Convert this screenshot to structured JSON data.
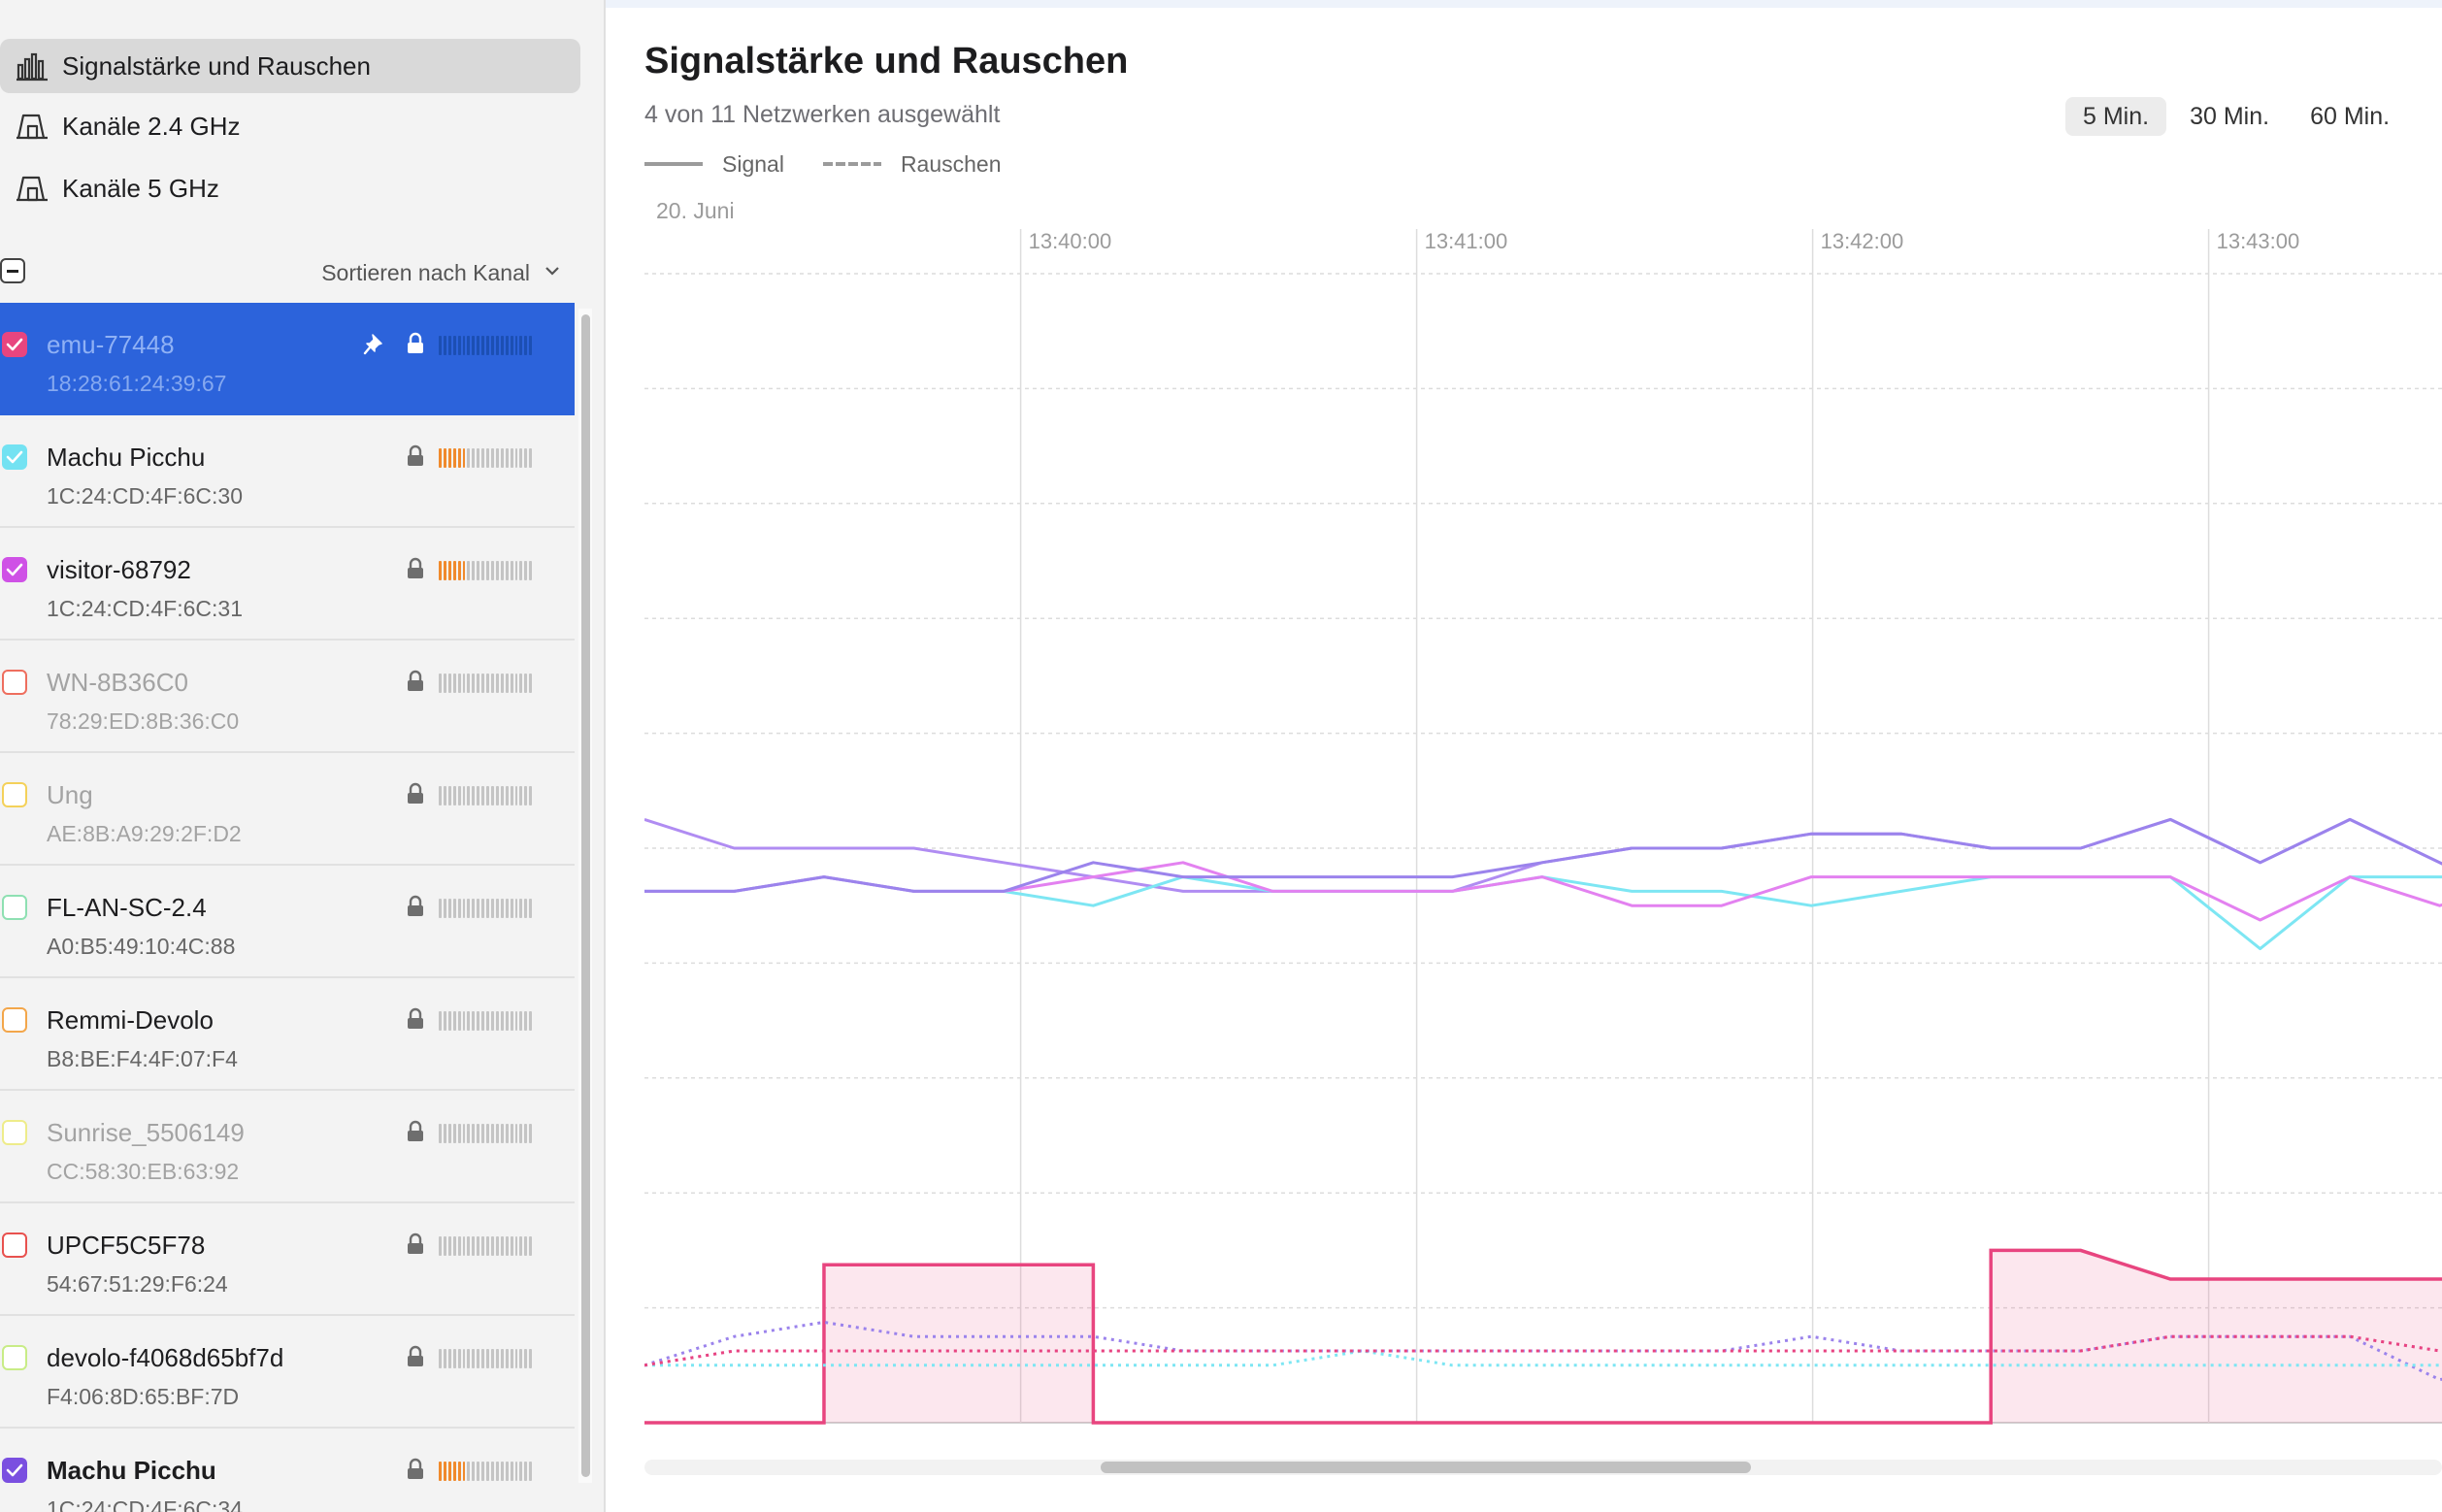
{
  "sidebar": {
    "views": [
      {
        "label": "Signalstärke und Rauschen",
        "icon": "bar-chart-icon",
        "active": true
      },
      {
        "label": "Kanäle 2.4 GHz",
        "icon": "channel-icon",
        "active": false
      },
      {
        "label": "Kanäle 5 GHz",
        "icon": "channel-icon",
        "active": false
      }
    ],
    "sort_label": "Sortieren nach Kanal",
    "networks": [
      {
        "name": "emu-77448",
        "mac": "18:28:61:24:39:67",
        "checked": true,
        "color": "#e8457f",
        "selected": true,
        "pinned": true,
        "bars_on": 0,
        "dim": false,
        "bold": false
      },
      {
        "name": "Machu Picchu",
        "mac": "1C:24:CD:4F:6C:30",
        "checked": true,
        "color": "#73e2f2",
        "selected": false,
        "pinned": false,
        "bars_on": 6,
        "dim": false,
        "bold": false
      },
      {
        "name": "visitor-68792",
        "mac": "1C:24:CD:4F:6C:31",
        "checked": true,
        "color": "#cf51e6",
        "selected": false,
        "pinned": false,
        "bars_on": 6,
        "dim": false,
        "bold": false
      },
      {
        "name": "WN-8B36C0",
        "mac": "78:29:ED:8B:36:C0",
        "checked": false,
        "color": "#ee6e5e",
        "selected": false,
        "pinned": false,
        "bars_on": 0,
        "dim": true,
        "bold": false
      },
      {
        "name": "Ung",
        "mac": "AE:8B:A9:29:2F:D2",
        "checked": false,
        "color": "#f4d15a",
        "selected": false,
        "pinned": false,
        "bars_on": 0,
        "dim": true,
        "bold": false
      },
      {
        "name": "FL-AN-SC-2.4",
        "mac": "A0:B5:49:10:4C:88",
        "checked": false,
        "color": "#8ee0b2",
        "selected": false,
        "pinned": false,
        "bars_on": 0,
        "dim": false,
        "bold": false
      },
      {
        "name": "Remmi-Devolo",
        "mac": "B8:BE:F4:4F:07:F4",
        "checked": false,
        "color": "#f3a64a",
        "selected": false,
        "pinned": false,
        "bars_on": 0,
        "dim": false,
        "bold": false
      },
      {
        "name": "Sunrise_5506149",
        "mac": "CC:58:30:EB:63:92",
        "checked": false,
        "color": "#eeec8a",
        "selected": false,
        "pinned": false,
        "bars_on": 0,
        "dim": true,
        "bold": false
      },
      {
        "name": "UPCF5C5F78",
        "mac": "54:67:51:29:F6:24",
        "checked": false,
        "color": "#e8514e",
        "selected": false,
        "pinned": false,
        "bars_on": 0,
        "dim": false,
        "bold": false
      },
      {
        "name": "devolo-f4068d65bf7d",
        "mac": "F4:06:8D:65:BF:7D",
        "checked": false,
        "color": "#c8ec86",
        "selected": false,
        "pinned": false,
        "bars_on": 0,
        "dim": false,
        "bold": false
      },
      {
        "name": "Machu Picchu",
        "mac": "1C:24:CD:4F:6C:34",
        "checked": true,
        "color": "#7a4fe0",
        "selected": false,
        "pinned": false,
        "bars_on": 6,
        "dim": false,
        "bold": true
      }
    ]
  },
  "main": {
    "title": "Signalstärke und Rauschen",
    "subtitle": "4 von 11 Netzwerken ausgewählt",
    "ranges": [
      {
        "label": "5 Min.",
        "active": true
      },
      {
        "label": "30 Min.",
        "active": false
      },
      {
        "label": "60 Min.",
        "active": false
      }
    ],
    "legend": {
      "signal": "Signal",
      "noise": "Rauschen"
    },
    "date_label": "20. Juni"
  },
  "chart_data": {
    "type": "line",
    "x_ticks": [
      "13:40:00",
      "13:41:00",
      "13:42:00",
      "13:43:00"
    ],
    "x_visible_start": "13:39:03",
    "x_step_seconds": 13.6,
    "grid": true,
    "ylim": [
      -100,
      -20
    ],
    "series": [
      {
        "kind": "signal",
        "color": "#b08cf2",
        "values": [
          -58,
          -60,
          -60,
          -60,
          -61,
          -62,
          -63,
          -63,
          -63,
          -63,
          -61,
          -60,
          -60,
          -59,
          -59,
          -60,
          -60,
          -58,
          -61,
          -58,
          -61,
          -64
        ]
      },
      {
        "kind": "signal",
        "color": "#7de6f3",
        "values": [
          -63,
          -63,
          -62,
          -63,
          -63,
          -64,
          -62,
          -63,
          -63,
          -63,
          -62,
          -63,
          -63,
          -64,
          -63,
          -62,
          -62,
          -62,
          -67,
          -62,
          -62,
          -62
        ]
      },
      {
        "kind": "signal",
        "color": "#e381f0",
        "values": [
          -63,
          -63,
          -62,
          -63,
          -63,
          -62,
          -61,
          -63,
          -63,
          -63,
          -62,
          -64,
          -64,
          -62,
          -62,
          -62,
          -62,
          -62,
          -65,
          -62,
          -64,
          -62
        ]
      },
      {
        "kind": "signal",
        "color": "#9b83ec",
        "values": [
          -63,
          -63,
          -62,
          -63,
          -63,
          -61,
          -62,
          -62,
          -62,
          -62,
          -61,
          -60,
          -60,
          -59,
          -59,
          -60,
          -60,
          -58,
          -61,
          -58,
          -61,
          -64
        ]
      },
      {
        "kind": "signal",
        "color": "#e8457f",
        "fill": true,
        "values": [
          -100,
          -100,
          -89,
          -89,
          -89,
          -100,
          -100,
          -100,
          -100,
          -100,
          -100,
          -100,
          -100,
          -100,
          -100,
          -88,
          -88,
          -90,
          -90,
          -90,
          -90,
          -100
        ]
      },
      {
        "kind": "noise",
        "color": "#9b83ec",
        "values": [
          -96,
          -94,
          -93,
          -94,
          -94,
          -94,
          -95,
          -95,
          -95,
          -95,
          -95,
          -95,
          -95,
          -94,
          -95,
          -95,
          -95,
          -94,
          -94,
          -94,
          -97,
          -96
        ]
      },
      {
        "kind": "noise",
        "color": "#7de6f3",
        "values": [
          -96,
          -96,
          -96,
          -96,
          -96,
          -96,
          -96,
          -96,
          -95,
          -96,
          -96,
          -96,
          -96,
          -96,
          -96,
          -96,
          -96,
          -96,
          -96,
          -96,
          -96,
          -96
        ]
      },
      {
        "kind": "noise",
        "color": "#e381f0",
        "values": [
          -96,
          -95,
          -95,
          -95,
          -95,
          -95,
          -95,
          -95,
          -95,
          -95,
          -95,
          -95,
          -95,
          -95,
          -95,
          -95,
          -95,
          -94,
          -94,
          -94,
          -95,
          -96
        ]
      },
      {
        "kind": "noise",
        "color": "#e8457f",
        "values": [
          -96,
          -95,
          -95,
          -95,
          -95,
          -95,
          -95,
          -95,
          -95,
          -95,
          -95,
          -95,
          -95,
          -95,
          -95,
          -95,
          -95,
          -94,
          -94,
          -94,
          -95,
          -96
        ]
      }
    ]
  }
}
